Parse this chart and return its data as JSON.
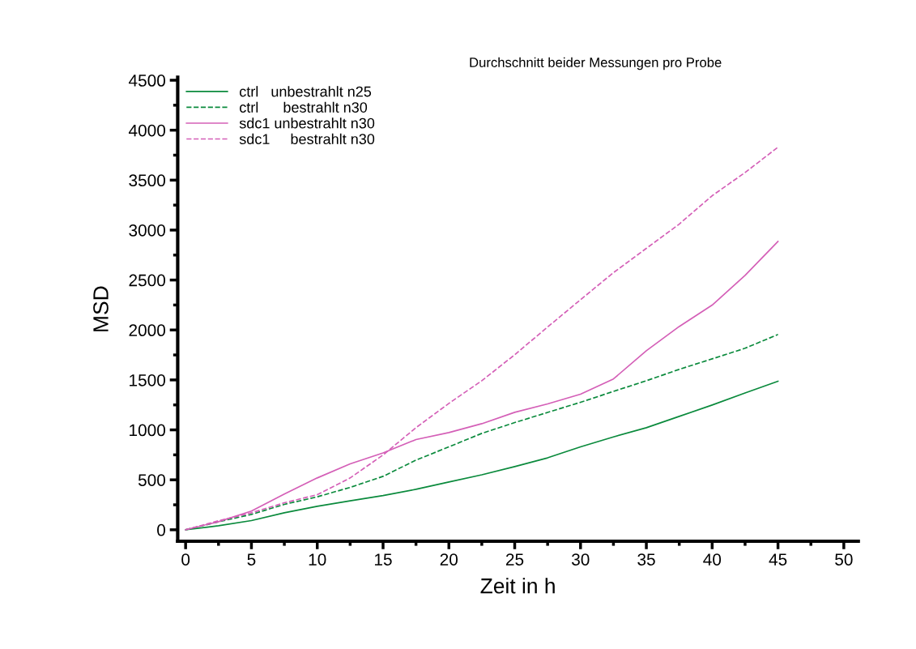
{
  "chart_data": {
    "type": "line",
    "title": "Durchschnitt beider Messungen pro Probe",
    "xlabel": "Zeit in h",
    "ylabel": "MSD",
    "x": [
      0,
      2.5,
      5,
      7.5,
      10,
      12.5,
      15,
      17.5,
      20,
      22.5,
      25,
      27.5,
      30,
      32.5,
      35,
      37.5,
      40,
      42.5,
      45
    ],
    "series": [
      {
        "name": "ctrl   unbestrahlt n25",
        "color": "#0a8a3c",
        "line_style": "solid",
        "values": [
          0,
          40,
          92,
          170,
          235,
          290,
          343,
          405,
          478,
          550,
          632,
          720,
          830,
          930,
          1022,
          1135,
          1249,
          1370,
          1487
        ]
      },
      {
        "name": "ctrl      bestrahlt n30",
        "color": "#0a8a3c",
        "line_style": "dashed",
        "values": [
          0,
          80,
          154,
          254,
          330,
          424,
          535,
          697,
          830,
          965,
          1073,
          1175,
          1276,
          1385,
          1492,
          1606,
          1711,
          1817,
          1955
        ]
      },
      {
        "name": "sdc1 unbestrahlt n30",
        "color": "#d45fb7",
        "line_style": "solid",
        "values": [
          0,
          81,
          187,
          357,
          519,
          660,
          770,
          903,
          973,
          1062,
          1176,
          1260,
          1357,
          1510,
          1792,
          2035,
          2249,
          2546,
          2887
        ]
      },
      {
        "name": "sdc1     bestrahlt n30",
        "color": "#d45fb7",
        "line_style": "dashed",
        "values": [
          0,
          90,
          170,
          270,
          351,
          519,
          749,
          1022,
          1265,
          1492,
          1752,
          2030,
          2303,
          2574,
          2817,
          3060,
          3344,
          3576,
          3830
        ]
      }
    ],
    "xlim": [
      -0.6,
      51.1
    ],
    "ylim": [
      -115,
      4530
    ],
    "xticks": [
      0,
      {
        "value": 2.5,
        "label": null
      },
      5,
      {
        "value": 7.5,
        "label": null
      },
      10,
      {
        "value": 12.5,
        "label": null
      },
      15,
      {
        "value": 17.5,
        "label": null
      },
      20,
      {
        "value": 22.5,
        "label": null
      },
      25,
      {
        "value": 27.5,
        "label": null
      },
      30,
      {
        "value": 32.5,
        "label": null
      },
      35,
      {
        "value": 37.5,
        "label": null
      },
      40,
      {
        "value": 42.5,
        "label": null
      },
      45,
      {
        "value": 47.5,
        "label": null
      },
      50
    ],
    "yticks": [
      0,
      {
        "value": 250,
        "label": null
      },
      500,
      {
        "value": 750,
        "label": null
      },
      1000,
      {
        "value": 1250,
        "label": null
      },
      1500,
      {
        "value": 1750,
        "label": null
      },
      2000,
      {
        "value": 2250,
        "label": null
      },
      2500,
      {
        "value": 2750,
        "label": null
      },
      3000,
      {
        "value": 3250,
        "label": null
      },
      3500,
      {
        "value": 3750,
        "label": null
      },
      4000,
      {
        "value": 4250,
        "label": null
      },
      4500
    ],
    "grid": false,
    "legend": "top left",
    "marker": "none"
  }
}
